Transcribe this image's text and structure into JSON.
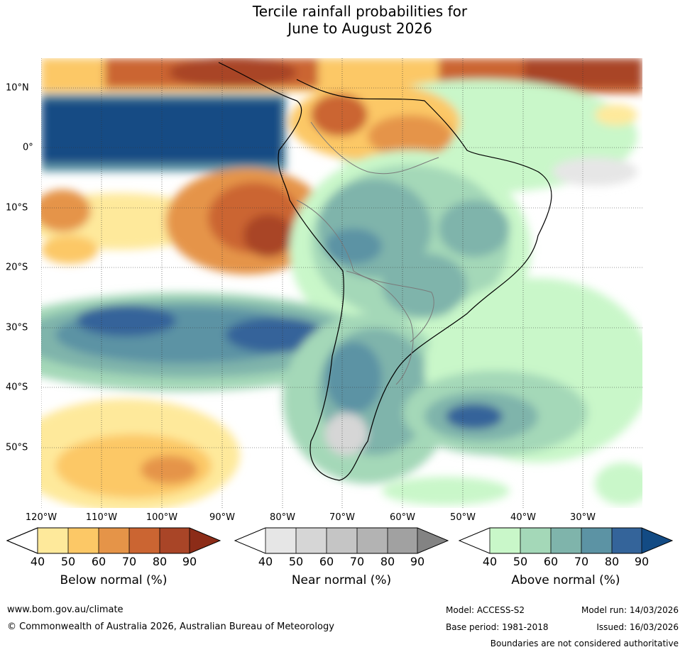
{
  "title": {
    "line1": "Tercile rainfall probabilities for",
    "line2": "June to August 2026"
  },
  "map": {
    "lat_labels": [
      "10°N",
      "0°",
      "10°S",
      "20°S",
      "30°S",
      "40°S",
      "50°S"
    ],
    "lon_labels": [
      "120°W",
      "110°W",
      "100°W",
      "90°W",
      "80°W",
      "70°W",
      "60°W",
      "50°W",
      "40°W",
      "30°W"
    ]
  },
  "colorbars": {
    "below": {
      "label": "Below normal (%)",
      "ticks": [
        "40",
        "50",
        "60",
        "70",
        "80",
        "90"
      ],
      "colors": [
        "#ffffff",
        "#fee99b",
        "#fcc866",
        "#e59448",
        "#cb6532",
        "#a94527",
        "#8c2c18"
      ]
    },
    "near": {
      "label": "Near normal (%)",
      "ticks": [
        "40",
        "50",
        "60",
        "70",
        "80",
        "90"
      ],
      "colors": [
        "#ffffff",
        "#e6e6e6",
        "#d6d6d6",
        "#c5c5c5",
        "#b3b3b3",
        "#a1a1a1",
        "#838383"
      ]
    },
    "above": {
      "label": "Above normal (%)",
      "ticks": [
        "40",
        "50",
        "60",
        "70",
        "80",
        "90"
      ],
      "colors": [
        "#ffffff",
        "#c9f7c9",
        "#a4d8b8",
        "#7fb4ab",
        "#5c93a4",
        "#34649a",
        "#134b84"
      ]
    }
  },
  "footer": {
    "url": "www.bom.gov.au/climate",
    "copyright": "© Commonwealth of Australia 2026, Australian Bureau of Meteorology",
    "model": "Model: ACCESS-S2",
    "base_period": "Base period: 1981-2018",
    "model_run": "Model run: 14/03/2026",
    "issued": "Issued: 16/03/2026",
    "disclaimer": "Boundaries are not considered authoritative"
  }
}
